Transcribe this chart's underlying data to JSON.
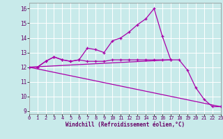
{
  "background_color": "#c8eaea",
  "grid_color": "#ffffff",
  "line_color": "#aa00aa",
  "marker": "+",
  "xlabel": "Windchill (Refroidissement éolien,°C)",
  "ylabel_ticks": [
    9,
    10,
    11,
    12,
    13,
    14,
    15,
    16
  ],
  "xlabel_ticks": [
    0,
    1,
    2,
    3,
    4,
    5,
    6,
    7,
    8,
    9,
    10,
    11,
    12,
    13,
    14,
    15,
    16,
    17,
    18,
    19,
    20,
    21,
    22,
    23
  ],
  "series1_x": [
    0,
    1,
    2,
    3,
    4,
    5,
    6,
    7,
    8,
    9,
    10,
    11,
    12,
    13,
    14,
    15,
    16,
    17
  ],
  "series1_y": [
    12.0,
    12.0,
    12.4,
    12.7,
    12.5,
    12.4,
    12.5,
    13.3,
    13.2,
    13.0,
    13.8,
    14.0,
    14.4,
    14.9,
    15.3,
    16.0,
    14.1,
    12.5
  ],
  "series2_x": [
    0,
    1,
    2,
    3,
    4,
    5,
    6,
    7,
    8,
    9,
    10,
    11,
    12,
    13,
    14,
    15,
    16,
    17,
    18,
    19,
    20,
    21,
    22,
    23
  ],
  "series2_y": [
    12.0,
    12.0,
    12.4,
    12.7,
    12.5,
    12.4,
    12.5,
    12.4,
    12.4,
    12.4,
    12.5,
    12.5,
    12.5,
    12.5,
    12.5,
    12.5,
    12.5,
    12.5,
    12.5,
    11.8,
    10.6,
    9.8,
    9.3,
    9.3
  ],
  "series3_x": [
    0,
    23
  ],
  "series3_y": [
    12.0,
    9.3
  ],
  "series4_x": [
    0,
    17
  ],
  "series4_y": [
    12.0,
    12.5
  ],
  "xlim": [
    0,
    23
  ],
  "ylim": [
    8.8,
    16.4
  ]
}
